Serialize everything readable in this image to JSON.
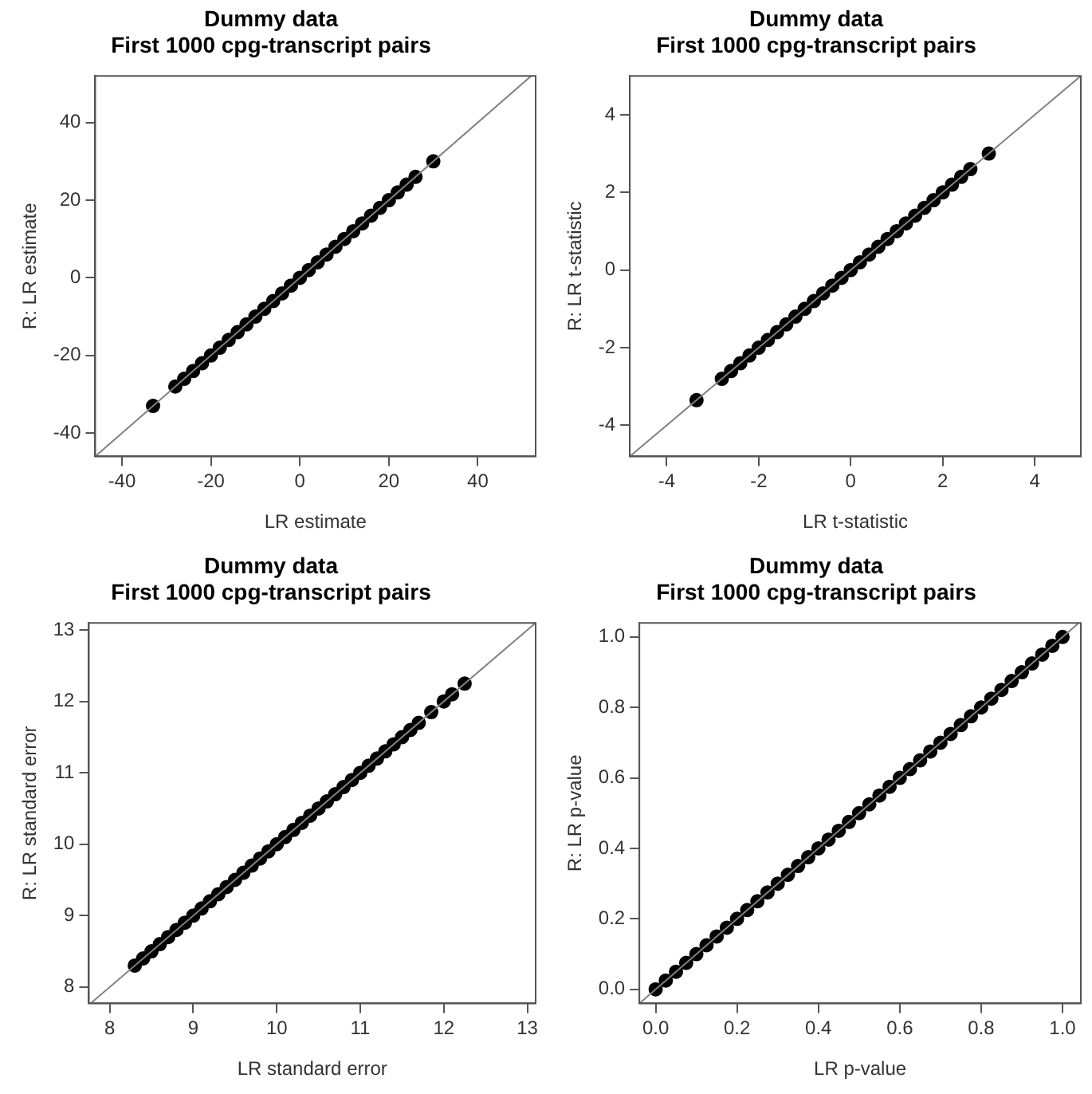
{
  "chart_data": [
    {
      "type": "scatter",
      "title": "Dummy data\nFirst 1000 cpg-transcript pairs",
      "xlabel": "LR estimate",
      "ylabel": "R: LR estimate",
      "marker": "circle",
      "xlim": [
        -46,
        53
      ],
      "ylim": [
        -46,
        52
      ],
      "xticks": [
        -40,
        -20,
        0,
        20,
        40
      ],
      "yticks": [
        -40,
        -20,
        0,
        20,
        40
      ],
      "series": [
        {
          "type": "scatter",
          "color": "#000000",
          "x": [
            -33,
            -28,
            -26,
            -24,
            -22,
            -20,
            -18,
            -16,
            -14,
            -12,
            -10,
            -8,
            -6,
            -4,
            -2,
            0,
            2,
            4,
            6,
            8,
            10,
            12,
            14,
            16,
            18,
            20,
            22,
            24,
            26,
            30
          ],
          "values": [
            -33,
            -28,
            -26,
            -24,
            -22,
            -20,
            -18,
            -16,
            -14,
            -12,
            -10,
            -8,
            -6,
            -4,
            -2,
            0,
            2,
            4,
            6,
            8,
            10,
            12,
            14,
            16,
            18,
            20,
            22,
            24,
            26,
            30
          ]
        },
        {
          "type": "line",
          "color": "#808080",
          "marker": "none",
          "x": [
            -46,
            52
          ],
          "values": [
            -46,
            52
          ]
        }
      ]
    },
    {
      "type": "scatter",
      "title": "Dummy data\nFirst 1000 cpg-transcript pairs",
      "xlabel": "LR t-statistic",
      "ylabel": "R: LR t-statistic",
      "marker": "circle",
      "xlim": [
        -4.8,
        5
      ],
      "ylim": [
        -4.8,
        5
      ],
      "xticks": [
        -4,
        -2,
        0,
        2,
        4
      ],
      "yticks": [
        -4,
        -2,
        0,
        2,
        4
      ],
      "series": [
        {
          "type": "scatter",
          "color": "#000000",
          "x": [
            -3.35,
            -2.8,
            -2.6,
            -2.4,
            -2.2,
            -2,
            -1.8,
            -1.6,
            -1.4,
            -1.2,
            -1,
            -0.8,
            -0.6,
            -0.4,
            -0.2,
            0,
            0.2,
            0.4,
            0.6,
            0.8,
            1,
            1.2,
            1.4,
            1.6,
            1.8,
            2,
            2.2,
            2.4,
            2.6,
            3
          ],
          "values": [
            -3.35,
            -2.8,
            -2.6,
            -2.4,
            -2.2,
            -2,
            -1.8,
            -1.6,
            -1.4,
            -1.2,
            -1,
            -0.8,
            -0.6,
            -0.4,
            -0.2,
            0,
            0.2,
            0.4,
            0.6,
            0.8,
            1,
            1.2,
            1.4,
            1.6,
            1.8,
            2,
            2.2,
            2.4,
            2.6,
            3
          ]
        },
        {
          "type": "line",
          "color": "#808080",
          "marker": "none",
          "x": [
            -4.8,
            5
          ],
          "values": [
            -4.8,
            5
          ]
        }
      ]
    },
    {
      "type": "scatter",
      "title": "Dummy data\nFirst 1000 cpg-transcript pairs",
      "xlabel": "LR standard error",
      "ylabel": "R: LR standard error",
      "marker": "circle",
      "xlim": [
        7.75,
        13.1
      ],
      "ylim": [
        7.77,
        13.1
      ],
      "xticks": [
        8,
        9,
        10,
        11,
        12,
        13
      ],
      "yticks": [
        8,
        9,
        10,
        11,
        12,
        13
      ],
      "series": [
        {
          "type": "scatter",
          "color": "#000000",
          "x": [
            8.3,
            8.4,
            8.5,
            8.6,
            8.7,
            8.8,
            8.9,
            9,
            9.1,
            9.2,
            9.3,
            9.4,
            9.5,
            9.6,
            9.7,
            9.8,
            9.9,
            10,
            10.1,
            10.2,
            10.3,
            10.4,
            10.5,
            10.6,
            10.7,
            10.8,
            10.9,
            11,
            11.1,
            11.2,
            11.3,
            11.4,
            11.5,
            11.6,
            11.7,
            11.85,
            12,
            12.1,
            12.25
          ],
          "values": [
            8.3,
            8.4,
            8.5,
            8.6,
            8.7,
            8.8,
            8.9,
            9,
            9.1,
            9.2,
            9.3,
            9.4,
            9.5,
            9.6,
            9.7,
            9.8,
            9.9,
            10,
            10.1,
            10.2,
            10.3,
            10.4,
            10.5,
            10.6,
            10.7,
            10.8,
            10.9,
            11,
            11.1,
            11.2,
            11.3,
            11.4,
            11.5,
            11.6,
            11.7,
            11.85,
            12,
            12.1,
            12.25
          ]
        },
        {
          "type": "line",
          "color": "#808080",
          "marker": "none",
          "x": [
            7.77,
            13.1
          ],
          "values": [
            7.77,
            13.1
          ]
        }
      ]
    },
    {
      "type": "scatter",
      "title": "Dummy data\nFirst 1000 cpg-transcript pairs",
      "xlabel": "LR p-value",
      "ylabel": "R: LR p-value",
      "marker": "circle",
      "xlim": [
        -0.04,
        1.045
      ],
      "ylim": [
        -0.04,
        1.04
      ],
      "xticks": [
        {
          "value": 0,
          "label": "0.0"
        },
        0.2,
        0.4,
        0.6,
        0.8,
        {
          "value": 1,
          "label": "1.0"
        }
      ],
      "yticks": [
        {
          "value": 0,
          "label": "0.0"
        },
        0.2,
        0.4,
        0.6,
        0.8,
        {
          "value": 1,
          "label": "1.0"
        }
      ],
      "series": [
        {
          "type": "scatter",
          "color": "#000000",
          "x": [
            0,
            0.025,
            0.05,
            0.075,
            0.1,
            0.125,
            0.15,
            0.175,
            0.2,
            0.225,
            0.25,
            0.275,
            0.3,
            0.325,
            0.35,
            0.375,
            0.4,
            0.425,
            0.45,
            0.475,
            0.5,
            0.525,
            0.55,
            0.575,
            0.6,
            0.625,
            0.65,
            0.675,
            0.7,
            0.725,
            0.75,
            0.775,
            0.8,
            0.825,
            0.85,
            0.875,
            0.9,
            0.925,
            0.95,
            0.975,
            1
          ],
          "values": [
            0,
            0.025,
            0.05,
            0.075,
            0.1,
            0.125,
            0.15,
            0.175,
            0.2,
            0.225,
            0.25,
            0.275,
            0.3,
            0.325,
            0.35,
            0.375,
            0.4,
            0.425,
            0.45,
            0.475,
            0.5,
            0.525,
            0.55,
            0.575,
            0.6,
            0.625,
            0.65,
            0.675,
            0.7,
            0.725,
            0.75,
            0.775,
            0.8,
            0.825,
            0.85,
            0.875,
            0.9,
            0.925,
            0.95,
            0.975,
            1
          ]
        },
        {
          "type": "line",
          "color": "#808080",
          "marker": "none",
          "x": [
            -0.04,
            1.04
          ],
          "values": [
            -0.04,
            1.04
          ]
        }
      ]
    }
  ]
}
